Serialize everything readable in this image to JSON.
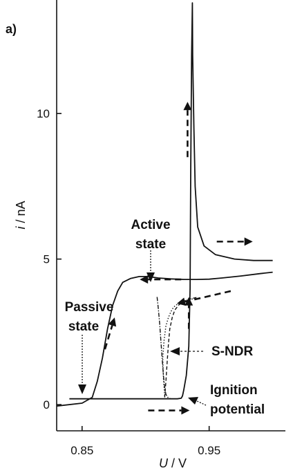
{
  "chart_data": {
    "type": "line",
    "panel_label": "a)",
    "xlabel_var": "U",
    "xlabel_unit": " / V",
    "ylabel_var": "i",
    "ylabel_unit": " / nA",
    "xlim": [
      0.83,
      1.01
    ],
    "ylim": [
      -0.9,
      13.9
    ],
    "x_ticks": [
      0.85,
      0.95
    ],
    "x_tick_labels": [
      "0.85",
      "0.95"
    ],
    "y_ticks": [
      0,
      5,
      10
    ],
    "y_tick_labels": [
      "0",
      "5",
      "10"
    ],
    "grid": false,
    "series": [
      {
        "style": "solid",
        "x": [
          0.83,
          0.85,
          0.858,
          0.862,
          0.866,
          0.87,
          0.874,
          0.878,
          0.882,
          0.888,
          0.895,
          0.902,
          0.91,
          0.92,
          0.93,
          0.94,
          0.95,
          0.96,
          0.975,
          0.99,
          1.0
        ],
        "y": [
          -0.05,
          0.05,
          0.25,
          0.8,
          1.6,
          2.6,
          3.4,
          3.9,
          4.2,
          4.33,
          4.4,
          4.4,
          4.35,
          4.32,
          4.3,
          4.3,
          4.31,
          4.35,
          4.42,
          4.5,
          4.55
        ]
      },
      {
        "style": "solid",
        "x": [
          1.0,
          0.985,
          0.97,
          0.955,
          0.946,
          0.941,
          0.939,
          0.938,
          0.937,
          0.9368,
          0.9362,
          0.9355,
          0.935,
          0.934,
          0.932,
          0.93,
          0.929,
          0.928,
          0.925,
          0.915,
          0.9,
          0.88,
          0.86,
          0.84
        ],
        "y": [
          4.95,
          4.95,
          5.0,
          5.15,
          5.45,
          6.1,
          7.5,
          9.5,
          12.0,
          13.8,
          12.0,
          8.0,
          4.0,
          2.0,
          1.0,
          0.5,
          0.3,
          0.22,
          0.2,
          0.2,
          0.2,
          0.2,
          0.2,
          0.2
        ]
      },
      {
        "style": "dash-dot",
        "x": [
          0.909,
          0.91,
          0.911,
          0.912,
          0.913,
          0.914,
          0.915,
          0.916,
          0.918,
          0.92
        ],
        "y": [
          3.7,
          3.3,
          2.8,
          2.2,
          1.6,
          1.0,
          0.6,
          0.35,
          0.22,
          0.2
        ]
      },
      {
        "style": "dotted",
        "x": [
          0.915,
          0.914,
          0.9135,
          0.9145,
          0.916,
          0.918,
          0.92,
          0.922,
          0.925,
          0.928,
          0.932,
          0.936,
          0.94
        ],
        "y": [
          0.3,
          0.9,
          1.6,
          2.2,
          2.7,
          3.0,
          3.2,
          3.35,
          3.45,
          3.52,
          3.58,
          3.62,
          3.66
        ]
      },
      {
        "style": "dashed",
        "x": [
          0.915,
          0.916,
          0.917,
          0.918,
          0.919,
          0.921,
          0.923,
          0.926,
          0.93,
          0.935,
          0.94
        ],
        "y": [
          0.25,
          0.8,
          1.5,
          2.1,
          2.6,
          3.0,
          3.25,
          3.42,
          3.55,
          3.63,
          3.68
        ]
      }
    ],
    "arrows": [
      {
        "x": 0.868,
        "y": 1.9,
        "dx": 0.0,
        "dy": 2.0
      },
      {
        "x": 0.902,
        "y": -0.2,
        "dx": 0.0,
        "dy": 0.0
      },
      {
        "x": 0.933,
        "y": 8.5,
        "dx": 0.0,
        "dy": 2.0
      },
      {
        "x": 0.956,
        "y": 5.6,
        "dx": 0.0,
        "dy": 0.0
      },
      {
        "x": 0.928,
        "y": 4.3,
        "dx": 0.0,
        "dy": 0.0
      },
      {
        "x": 0.967,
        "y": 3.9,
        "dx": 0.0,
        "dy": 0.0
      },
      {
        "x": 0.934,
        "y": 2.6,
        "dx": 0.0,
        "dy": 1.4
      }
    ],
    "annotations": {
      "active": [
        "Active",
        "state"
      ],
      "passive": [
        "Passive",
        "state"
      ],
      "sndr": "S-NDR",
      "ignition": [
        "Ignition",
        "potential"
      ]
    }
  }
}
